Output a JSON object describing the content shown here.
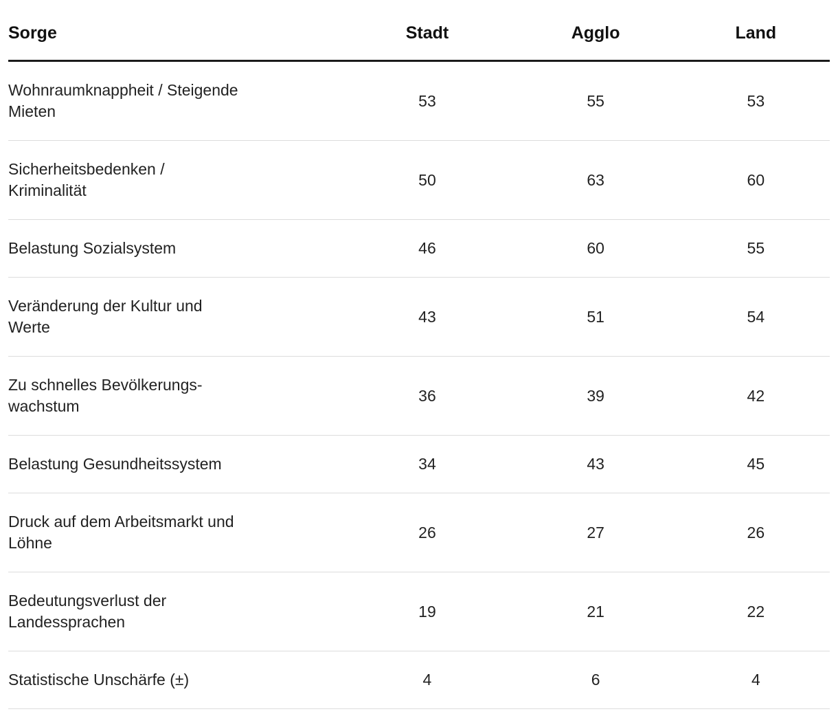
{
  "colors": {
    "header_rule": "#1a1a1a",
    "row_divider": "#dcdcdc",
    "text": "#222222",
    "background": "#ffffff"
  },
  "chart_data": {
    "type": "table",
    "title": "",
    "columns": [
      "Sorge",
      "Stadt",
      "Agglo",
      "Land"
    ],
    "rows": [
      {
        "label": "Wohnraumknappheit / Steigende\nMieten",
        "values": [
          53,
          55,
          53
        ]
      },
      {
        "label": "Sicherheitsbedenken /\nKriminalität",
        "values": [
          50,
          63,
          60
        ]
      },
      {
        "label": "Belastung Sozialsystem",
        "values": [
          46,
          60,
          55
        ]
      },
      {
        "label": "Veränderung der Kultur und\nWerte",
        "values": [
          43,
          51,
          54
        ]
      },
      {
        "label": "Zu schnelles Bevölkerungs-\nwachstum",
        "values": [
          36,
          39,
          42
        ]
      },
      {
        "label": "Belastung Gesundheitssystem",
        "values": [
          34,
          43,
          45
        ]
      },
      {
        "label": "Druck auf dem Arbeitsmarkt und\nLöhne",
        "values": [
          26,
          27,
          26
        ]
      },
      {
        "label": "Bedeutungsverlust der\nLandessprachen",
        "values": [
          19,
          21,
          22
        ]
      },
      {
        "label": "Statistische Unschärfe (±)",
        "values": [
          4,
          6,
          4
        ]
      }
    ]
  }
}
